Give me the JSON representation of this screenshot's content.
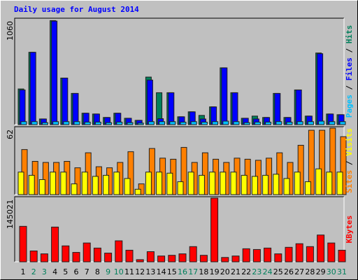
{
  "chart_data": [
    {
      "type": "bar",
      "title": "Daily usage for August 2014",
      "legend_separator": "/",
      "ylim": [
        0,
        1060
      ],
      "yticks": [
        1060
      ],
      "series": [
        {
          "name": "Hits",
          "color": "#00805c",
          "values": [
            360,
            730,
            57,
            1050,
            470,
            315,
            115,
            107,
            72,
            115,
            64,
            43,
            480,
            322,
            322,
            79,
            129,
            93,
            179,
            573,
            322,
            64,
            86,
            72,
            315,
            72,
            350,
            86,
            723,
            107,
            100
          ]
        },
        {
          "name": "Files",
          "color": "#0000ff",
          "values": [
            350,
            730,
            57,
            1045,
            470,
            315,
            115,
            107,
            72,
            115,
            64,
            43,
            450,
            60,
            322,
            79,
            129,
            57,
            179,
            573,
            322,
            64,
            57,
            72,
            315,
            72,
            350,
            86,
            716,
            107,
            100
          ]
        },
        {
          "name": "Pages",
          "color": "#00c0ff",
          "values": [
            30,
            30,
            20,
            30,
            30,
            30,
            25,
            25,
            20,
            25,
            20,
            15,
            30,
            30,
            30,
            25,
            30,
            25,
            30,
            35,
            30,
            20,
            25,
            25,
            30,
            25,
            30,
            30,
            35,
            30,
            30
          ]
        }
      ]
    },
    {
      "type": "bar",
      "legend_separator": "/",
      "ylim": [
        0,
        62
      ],
      "yticks": [
        62
      ],
      "series": [
        {
          "name": "Visits",
          "color": "#ffff00",
          "values": [
            21,
            18,
            14,
            21,
            21,
            10,
            21,
            17,
            18,
            21,
            15,
            5,
            21,
            21,
            20,
            12,
            21,
            18,
            21,
            21,
            21,
            18,
            17,
            18,
            19,
            15,
            21,
            12,
            24,
            21,
            21
          ]
        },
        {
          "name": "Sites",
          "color": "#ff8000",
          "values": [
            42,
            31,
            30,
            30,
            31,
            25,
            39,
            26,
            25,
            30,
            40,
            10,
            43,
            34,
            33,
            44,
            30,
            39,
            33,
            30,
            34,
            33,
            32,
            34,
            39,
            30,
            46,
            60,
            60,
            62,
            54
          ]
        }
      ]
    },
    {
      "type": "bar",
      "ylim": [
        0,
        145021
      ],
      "yticks": [
        145021
      ],
      "categories": [
        "1",
        "2",
        "3",
        "4",
        "5",
        "6",
        "7",
        "8",
        "9",
        "10",
        "11",
        "12",
        "13",
        "14",
        "15",
        "16",
        "17",
        "18",
        "19",
        "20",
        "21",
        "22",
        "23",
        "24",
        "25",
        "26",
        "27",
        "28",
        "29",
        "30",
        "31"
      ],
      "category_colors": [
        "#000000",
        "#00805c",
        "#00805c",
        "#000000",
        "#000000",
        "#000000",
        "#000000",
        "#000000",
        "#00805c",
        "#00805c",
        "#000000",
        "#000000",
        "#000000",
        "#000000",
        "#000000",
        "#00805c",
        "#00805c",
        "#000000",
        "#000000",
        "#000000",
        "#000000",
        "#000000",
        "#00805c",
        "#00805c",
        "#000000",
        "#000000",
        "#000000",
        "#000000",
        "#000000",
        "#00805c",
        "#00805c"
      ],
      "series": [
        {
          "name": "KBytes",
          "color": "#ff0000",
          "values": [
            80750,
            24700,
            18100,
            79100,
            36250,
            21400,
            42850,
            31300,
            19800,
            47800,
            26400,
            4900,
            23100,
            13200,
            14800,
            18100,
            34600,
            14800,
            145021,
            9900,
            13200,
            29700,
            28000,
            31300,
            18100,
            33000,
            41200,
            34600,
            61000,
            42850,
            26400
          ]
        }
      ]
    }
  ]
}
